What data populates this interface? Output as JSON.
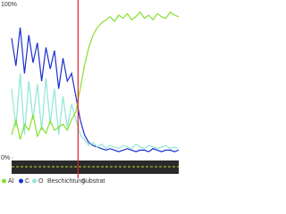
{
  "chart_data": {
    "type": "line",
    "categories": [
      null,
      null,
      null,
      null,
      null,
      null,
      null,
      null,
      null,
      null,
      null,
      null,
      null,
      null,
      null,
      null,
      null,
      null,
      null,
      null,
      null,
      null,
      null,
      null,
      null,
      null,
      null,
      null,
      null,
      null,
      null,
      null,
      null,
      null,
      null,
      null,
      null,
      null,
      null,
      null
    ],
    "series": [
      {
        "name": "Al",
        "color": "#86e02e",
        "values": [
          15,
          25,
          12,
          22,
          18,
          28,
          14,
          20,
          16,
          24,
          18,
          20,
          22,
          18,
          25,
          30,
          45,
          60,
          72,
          80,
          85,
          88,
          90,
          92,
          89,
          93,
          91,
          94,
          90,
          92,
          95,
          91,
          93,
          90,
          94,
          92,
          91,
          95,
          93,
          92
        ]
      },
      {
        "name": "C",
        "color": "#1c2fd0",
        "values": [
          78,
          60,
          85,
          55,
          80,
          62,
          75,
          50,
          72,
          58,
          70,
          45,
          65,
          50,
          55,
          40,
          25,
          15,
          10,
          8,
          7,
          6,
          5,
          6,
          5,
          4,
          5,
          6,
          5,
          4,
          5,
          5,
          4,
          6,
          5,
          4,
          5,
          5,
          4,
          5
        ]
      },
      {
        "name": "O",
        "color": "#8fe6d6",
        "values": [
          45,
          20,
          55,
          15,
          50,
          25,
          48,
          18,
          52,
          22,
          45,
          15,
          40,
          20,
          35,
          25,
          15,
          12,
          8,
          10,
          7,
          9,
          6,
          8,
          7,
          6,
          8,
          7,
          6,
          9,
          7,
          6,
          8,
          7,
          6,
          7,
          8,
          6,
          7,
          6
        ]
      }
    ],
    "ylim": [
      0,
      100
    ],
    "yticks": [
      {
        "value": 0,
        "label": "0%"
      },
      {
        "value": 100,
        "label": "100%"
      }
    ],
    "boundary": 15.5,
    "regions": [
      "Beschichtung",
      "Substrat"
    ]
  }
}
